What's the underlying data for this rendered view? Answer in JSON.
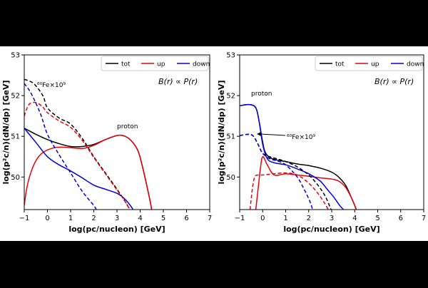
{
  "chart_data": [
    {
      "type": "line",
      "title": "",
      "xlabel": "log(pc/nucleon) [GeV]",
      "ylabel": "log(p²c/n)(dN/dp) [GeV]",
      "xlim": [
        -1,
        7
      ],
      "ylim": [
        49.2,
        53
      ],
      "xticks": [
        "−1",
        "0",
        "1",
        "2",
        "3",
        "4",
        "5",
        "6",
        "7"
      ],
      "yticks": [
        "50",
        "51",
        "52",
        "53"
      ],
      "grid": false,
      "legend": {
        "placement": "top-right",
        "entries": [
          {
            "label": "tot",
            "color": "#000000"
          },
          {
            "label": "up",
            "color": "#e8000b"
          },
          {
            "label": "down",
            "color": "#0000dd"
          }
        ]
      },
      "annotations": {
        "relation": "B(r) ∝ P(r)",
        "fe": "⁶⁰Fe×10⁹",
        "proton": "proton"
      },
      "series": [
        {
          "species": "proton",
          "component": "tot",
          "style": "solid",
          "color": "#000000",
          "x": [
            -1,
            -0.5,
            0,
            0.5,
            1,
            1.5,
            2,
            2.5,
            3,
            3.3,
            3.6,
            3.9,
            4.1,
            4.3,
            4.45,
            4.55
          ],
          "y": [
            51.2,
            51.05,
            50.92,
            50.82,
            50.75,
            50.75,
            50.8,
            50.92,
            51.02,
            51.01,
            50.9,
            50.65,
            50.25,
            49.75,
            49.35,
            49.0
          ]
        },
        {
          "species": "proton",
          "component": "up",
          "style": "solid",
          "color": "#e8000b",
          "x": [
            -1,
            -0.9,
            -0.75,
            -0.5,
            -0.2,
            0.3,
            0.8,
            1.5,
            2,
            2.5,
            3,
            3.3,
            3.6,
            3.9,
            4.1,
            4.3,
            4.45,
            4.55
          ],
          "y": [
            49.3,
            49.7,
            50.05,
            50.4,
            50.6,
            50.72,
            50.73,
            50.7,
            50.78,
            50.92,
            51.02,
            51.01,
            50.9,
            50.65,
            50.25,
            49.75,
            49.35,
            49.0
          ]
        },
        {
          "species": "proton",
          "component": "down",
          "style": "solid",
          "color": "#0000dd",
          "x": [
            -1,
            -0.5,
            0,
            0.5,
            1,
            1.5,
            2,
            2.5,
            3,
            3.3,
            3.55,
            3.75
          ],
          "y": [
            51.2,
            50.85,
            50.5,
            50.3,
            50.15,
            49.98,
            49.8,
            49.7,
            49.6,
            49.48,
            49.32,
            49.15
          ]
        },
        {
          "species": "60Fe",
          "component": "tot",
          "style": "dashed",
          "color": "#000000",
          "x": [
            -1,
            -0.6,
            -0.2,
            0,
            0.5,
            1,
            1.5,
            2,
            2.5,
            3,
            3.35,
            3.6
          ],
          "y": [
            52.4,
            52.3,
            52.0,
            51.7,
            51.45,
            51.3,
            50.95,
            50.5,
            50.1,
            49.7,
            49.4,
            49.15
          ]
        },
        {
          "species": "60Fe",
          "component": "up",
          "style": "dashed",
          "color": "#e8000b",
          "x": [
            -1,
            -0.8,
            -0.5,
            -0.2,
            0,
            0.5,
            1,
            1.5,
            2,
            2.5,
            3,
            3.35,
            3.6
          ],
          "y": [
            51.5,
            51.78,
            51.83,
            51.72,
            51.58,
            51.38,
            51.22,
            50.9,
            50.48,
            50.08,
            49.68,
            49.4,
            49.15
          ]
        },
        {
          "species": "60Fe",
          "component": "down",
          "style": "dashed",
          "color": "#0000dd",
          "x": [
            -1,
            -0.7,
            -0.3,
            0,
            0.5,
            1,
            1.5,
            2,
            2.1
          ],
          "y": [
            52.3,
            52.05,
            51.55,
            51.05,
            50.55,
            50.1,
            49.65,
            49.3,
            49.2
          ]
        }
      ]
    },
    {
      "type": "line",
      "title": "",
      "xlabel": "log(pc/nucleon) [GeV]",
      "ylabel": "log(p²c/n)(dN/dp) [GeV]",
      "xlim": [
        -1,
        7
      ],
      "ylim": [
        49.2,
        53
      ],
      "xticks": [
        "−1",
        "0",
        "1",
        "2",
        "3",
        "4",
        "5",
        "6",
        "7"
      ],
      "yticks": [
        "50",
        "51",
        "52",
        "53"
      ],
      "grid": false,
      "legend": {
        "placement": "top-right",
        "entries": [
          {
            "label": "tot",
            "color": "#000000"
          },
          {
            "label": "up",
            "color": "#e8000b"
          },
          {
            "label": "down",
            "color": "#0000dd"
          }
        ]
      },
      "annotations": {
        "relation": "B(r) ∝ P(r)",
        "fe": "⁶⁰Fe×10⁹",
        "proton": "proton"
      },
      "series": [
        {
          "species": "proton",
          "component": "tot",
          "style": "solid",
          "color": "#000000",
          "x": [
            -1,
            -0.6,
            -0.3,
            -0.15,
            0,
            0.1,
            0.3,
            0.6,
            1,
            1.5,
            2,
            2.5,
            3,
            3.3,
            3.6,
            3.85,
            4.0,
            4.1
          ],
          "y": [
            51.75,
            51.78,
            51.7,
            51.35,
            50.85,
            50.62,
            50.48,
            50.42,
            50.38,
            50.32,
            50.28,
            50.22,
            50.12,
            50.0,
            49.8,
            49.5,
            49.3,
            49.15
          ]
        },
        {
          "species": "proton",
          "component": "up",
          "style": "solid",
          "color": "#e8000b",
          "x": [
            -0.3,
            -0.2,
            -0.1,
            0,
            0.2,
            0.5,
            1,
            1.5,
            2,
            2.5,
            3,
            3.3,
            3.6,
            3.85,
            4.0,
            4.1
          ],
          "y": [
            49.2,
            49.7,
            50.2,
            50.5,
            50.3,
            50.05,
            50.08,
            50.05,
            50.02,
            49.98,
            49.95,
            49.9,
            49.75,
            49.5,
            49.3,
            49.15
          ]
        },
        {
          "species": "proton",
          "component": "down",
          "style": "solid",
          "color": "#0000dd",
          "x": [
            -1,
            -0.6,
            -0.3,
            -0.15,
            0,
            0.2,
            0.5,
            1,
            1.5,
            2,
            2.5,
            2.8,
            3.1,
            3.35,
            3.6
          ],
          "y": [
            51.75,
            51.78,
            51.7,
            51.35,
            50.8,
            50.45,
            50.35,
            50.3,
            50.2,
            50.08,
            49.9,
            49.7,
            49.5,
            49.3,
            49.15
          ]
        },
        {
          "species": "60Fe",
          "component": "tot",
          "style": "dashed",
          "color": "#000000",
          "x": [
            -1,
            -0.6,
            -0.4,
            -0.2,
            0,
            0.3,
            0.6,
            1,
            1.5,
            2,
            2.4,
            2.7,
            2.9,
            3.0
          ],
          "y": [
            51.02,
            51.05,
            51.0,
            50.8,
            50.58,
            50.5,
            50.45,
            50.38,
            50.25,
            50.05,
            49.8,
            49.55,
            49.3,
            49.15
          ]
        },
        {
          "species": "60Fe",
          "component": "up",
          "style": "dashed",
          "color": "#e8000b",
          "x": [
            -0.55,
            -0.45,
            -0.35,
            -0.2,
            0,
            0.5,
            1,
            1.5,
            2,
            2.4,
            2.7,
            2.9
          ],
          "y": [
            49.2,
            49.7,
            50.0,
            50.05,
            50.05,
            50.08,
            50.1,
            50.05,
            49.85,
            49.6,
            49.35,
            49.15
          ]
        },
        {
          "species": "60Fe",
          "component": "down",
          "style": "dashed",
          "color": "#0000dd",
          "x": [
            -1,
            -0.6,
            -0.4,
            -0.2,
            0,
            0.3,
            0.6,
            1,
            1.5,
            1.8,
            2.05,
            2.2
          ],
          "y": [
            51.02,
            51.05,
            51.0,
            50.8,
            50.58,
            50.45,
            50.4,
            50.3,
            50.0,
            49.7,
            49.4,
            49.15
          ]
        }
      ]
    }
  ]
}
